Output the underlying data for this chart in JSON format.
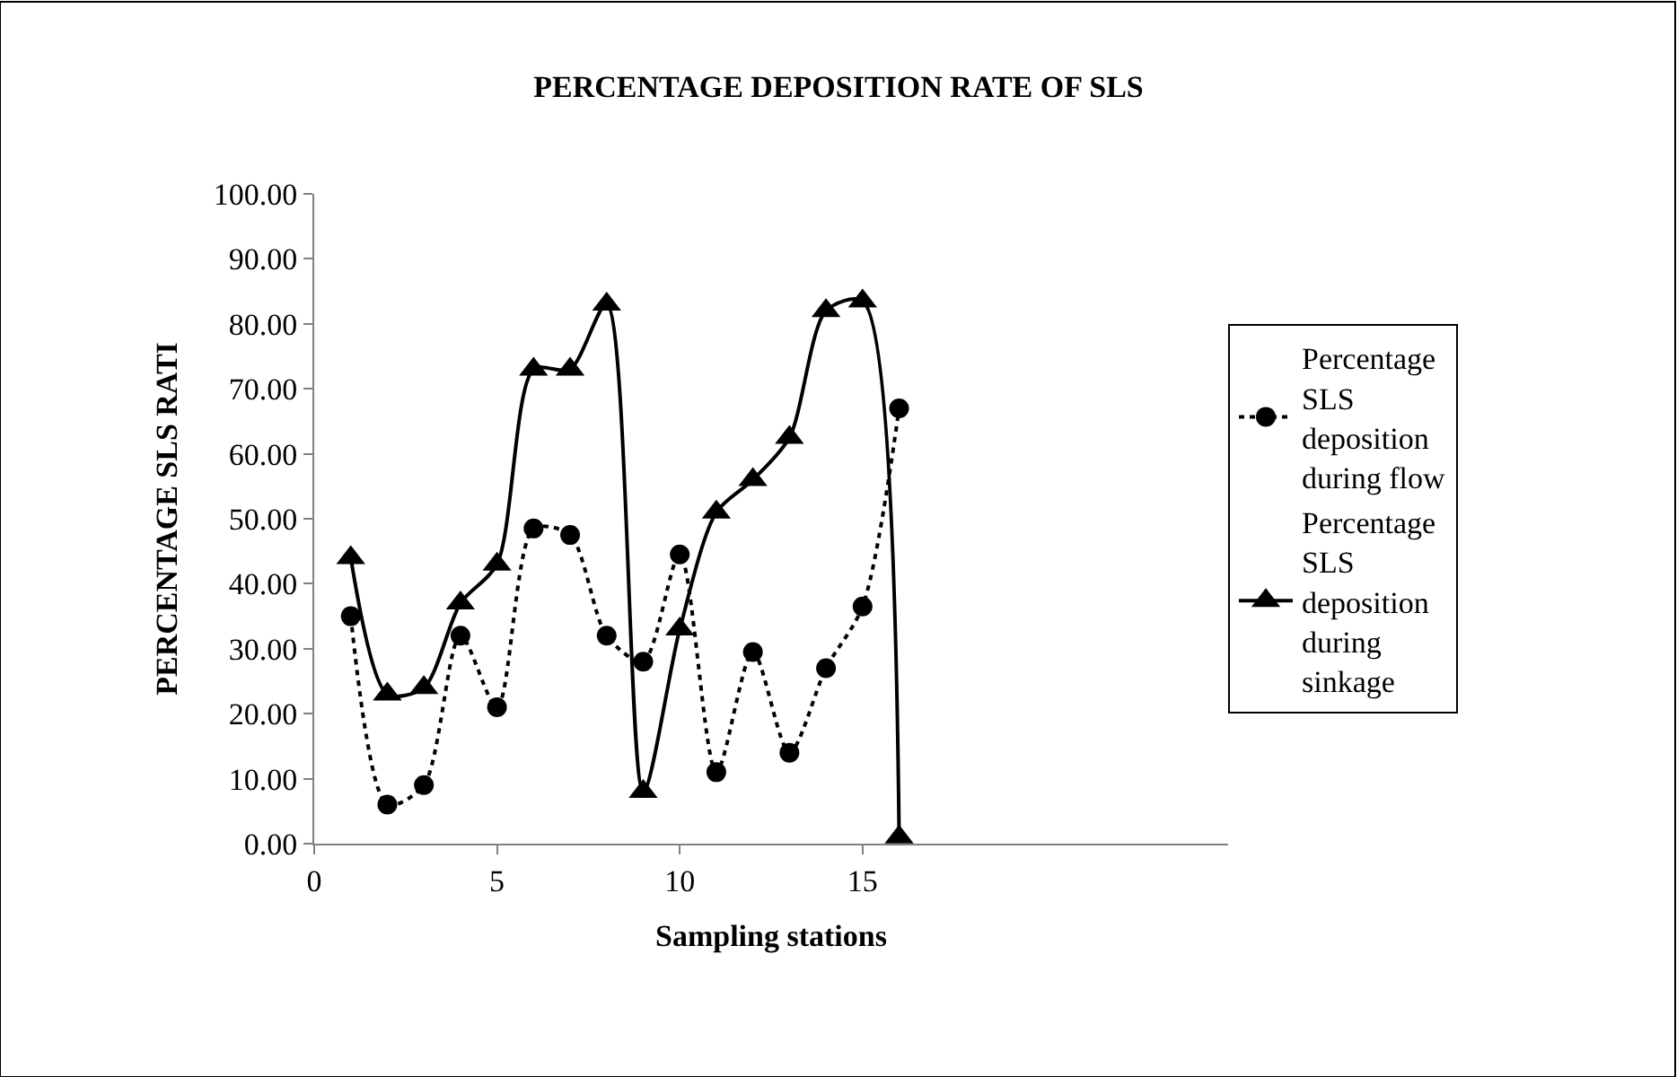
{
  "chart_data": {
    "type": "line",
    "title": "PERCENTAGE DEPOSITION RATE OF SLS",
    "xlabel": "Sampling stations",
    "ylabel": "PERCENTAGE SLS RATI",
    "x": [
      1,
      2,
      3,
      4,
      5,
      6,
      7,
      8,
      9,
      10,
      11,
      12,
      13,
      14,
      15,
      16
    ],
    "xlim": [
      0,
      25
    ],
    "xticks": [
      0,
      5,
      10,
      15
    ],
    "ylim": [
      0,
      100
    ],
    "yticks": [
      {
        "value": 0,
        "label": "0.00"
      },
      {
        "value": 10,
        "label": "10.00"
      },
      {
        "value": 20,
        "label": "20.00"
      },
      {
        "value": 30,
        "label": "30.00"
      },
      {
        "value": 40,
        "label": "40.00"
      },
      {
        "value": 50,
        "label": "50.00"
      },
      {
        "value": 60,
        "label": "60.00"
      },
      {
        "value": 70,
        "label": "70.00"
      },
      {
        "value": 80,
        "label": "80.00"
      },
      {
        "value": 90,
        "label": "90.00"
      },
      {
        "value": 100,
        "label": "100.00"
      }
    ],
    "legend": "right",
    "series": [
      {
        "name": "Percentage SLS deposition during flow",
        "color": "#000000",
        "marker": "circle",
        "line_style": "dotted",
        "values": [
          35,
          6,
          9,
          32,
          21,
          48.5,
          47.5,
          32,
          28,
          44.5,
          11,
          29.5,
          14,
          27,
          36.5,
          67
        ]
      },
      {
        "name": "Percentage SLS deposition during sinkage",
        "color": "#000000",
        "marker": "triangle",
        "line_style": "solid",
        "values": [
          44,
          23,
          24,
          37,
          43,
          73,
          73,
          83,
          8,
          33,
          51,
          56,
          62.5,
          82,
          83.5,
          1
        ]
      }
    ]
  }
}
